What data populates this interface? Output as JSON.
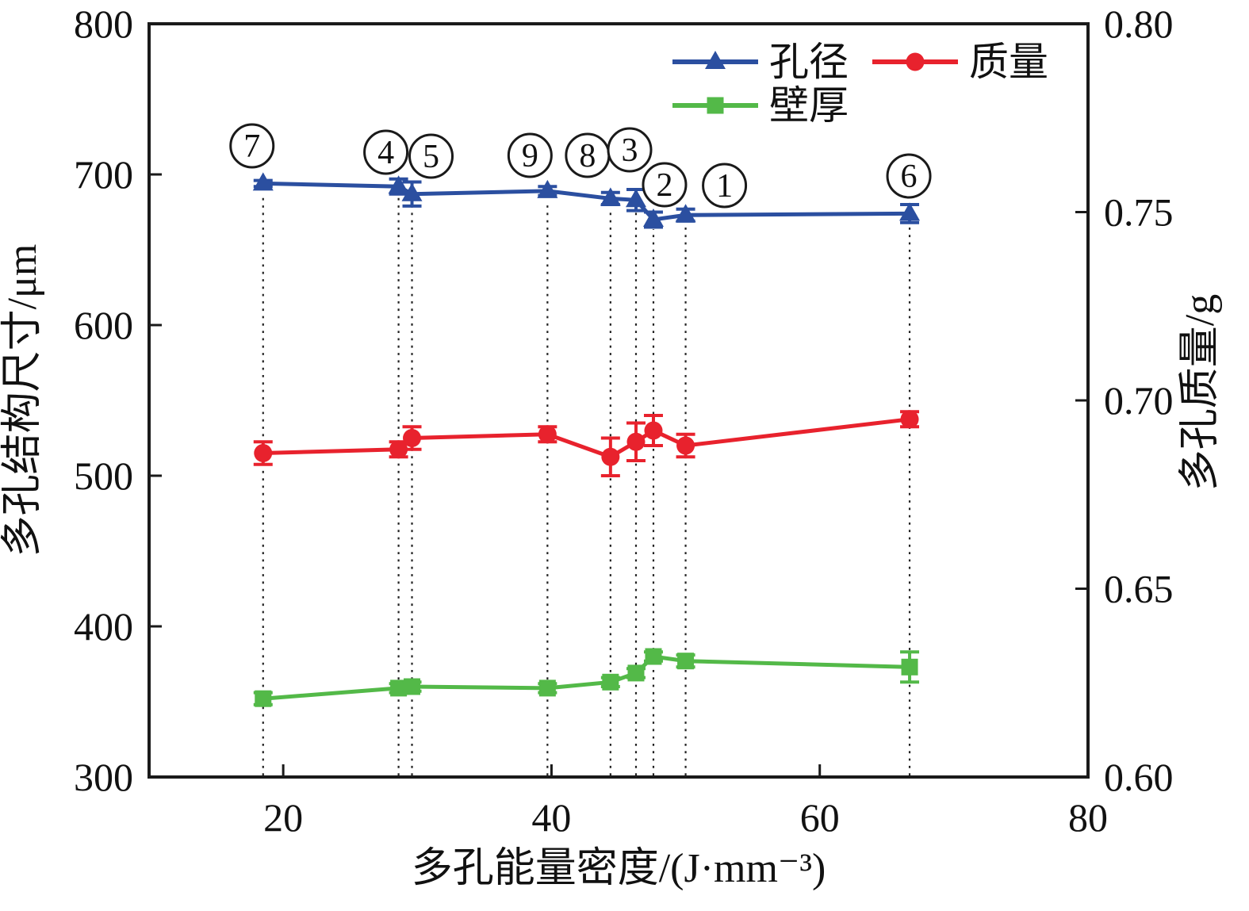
{
  "chart_data": {
    "type": "line",
    "title": "",
    "xlabel": "多孔能量密度/(J·mm⁻³)",
    "ylabel_left": "多孔结构尺寸/μm",
    "ylabel_right": "多孔质量/g",
    "xlim": [
      10,
      80
    ],
    "ylim_left": [
      300,
      800
    ],
    "ylim_right": [
      0.6,
      0.8
    ],
    "x_ticks": [
      20,
      40,
      60,
      80
    ],
    "y_ticks_left": [
      300,
      400,
      500,
      600,
      700,
      800
    ],
    "y_ticks_right": [
      "0.60",
      "0.65",
      "0.70",
      "0.75",
      "0.80"
    ],
    "grid": "off",
    "legend_position": "top-inside",
    "x": [
      18.5,
      28.6,
      29.6,
      39.7,
      44.4,
      46.3,
      47.6,
      50,
      66.7
    ],
    "point_labels": [
      "7",
      "4",
      "5",
      "9",
      "8",
      "3",
      "2",
      "1",
      "6"
    ],
    "series": [
      {
        "key": "wall_thickness",
        "name": "壁厚",
        "axis": "left",
        "marker": "square",
        "color": "#53b948",
        "values": [
          352,
          359,
          360,
          359,
          363,
          369,
          380,
          377,
          373
        ],
        "errors": [
          4,
          3,
          3,
          3,
          3,
          3,
          3,
          4,
          10
        ]
      },
      {
        "key": "mass",
        "name": "质量",
        "axis": "right",
        "marker": "circle",
        "color": "#e8222d",
        "values": [
          0.686,
          0.687,
          0.69,
          0.691,
          0.685,
          0.689,
          0.692,
          0.688,
          0.695
        ],
        "errors": [
          0.003,
          0.002,
          0.003,
          0.002,
          0.005,
          0.005,
          0.004,
          0.003,
          0.002
        ]
      },
      {
        "key": "pore_diameter",
        "name": "孔径",
        "axis": "left",
        "marker": "triangle",
        "color": "#2b4fa0",
        "values": [
          694,
          692,
          687,
          689,
          684,
          683,
          670,
          673,
          674
        ],
        "errors": [
          2,
          5,
          8,
          3,
          4,
          7,
          5,
          4,
          6
        ]
      }
    ],
    "annotations": [
      {
        "digit": "7",
        "dx": -14,
        "y": 184
      },
      {
        "digit": "4",
        "dx": -16,
        "y": 192
      },
      {
        "digit": "5",
        "dx": 24,
        "y": 197
      },
      {
        "digit": "9",
        "dx": -22,
        "y": 196
      },
      {
        "digit": "8",
        "dx": -29,
        "y": 196
      },
      {
        "digit": "3",
        "dx": -8,
        "y": 189
      },
      {
        "digit": "2",
        "dx": 14,
        "y": 233
      },
      {
        "digit": "1",
        "dx": 49,
        "y": 234
      },
      {
        "digit": "6",
        "dx": -1,
        "y": 222
      }
    ],
    "legend_order": [
      "pore_diameter",
      "mass",
      "wall_thickness"
    ],
    "axis_color": "#1a1a1a"
  }
}
